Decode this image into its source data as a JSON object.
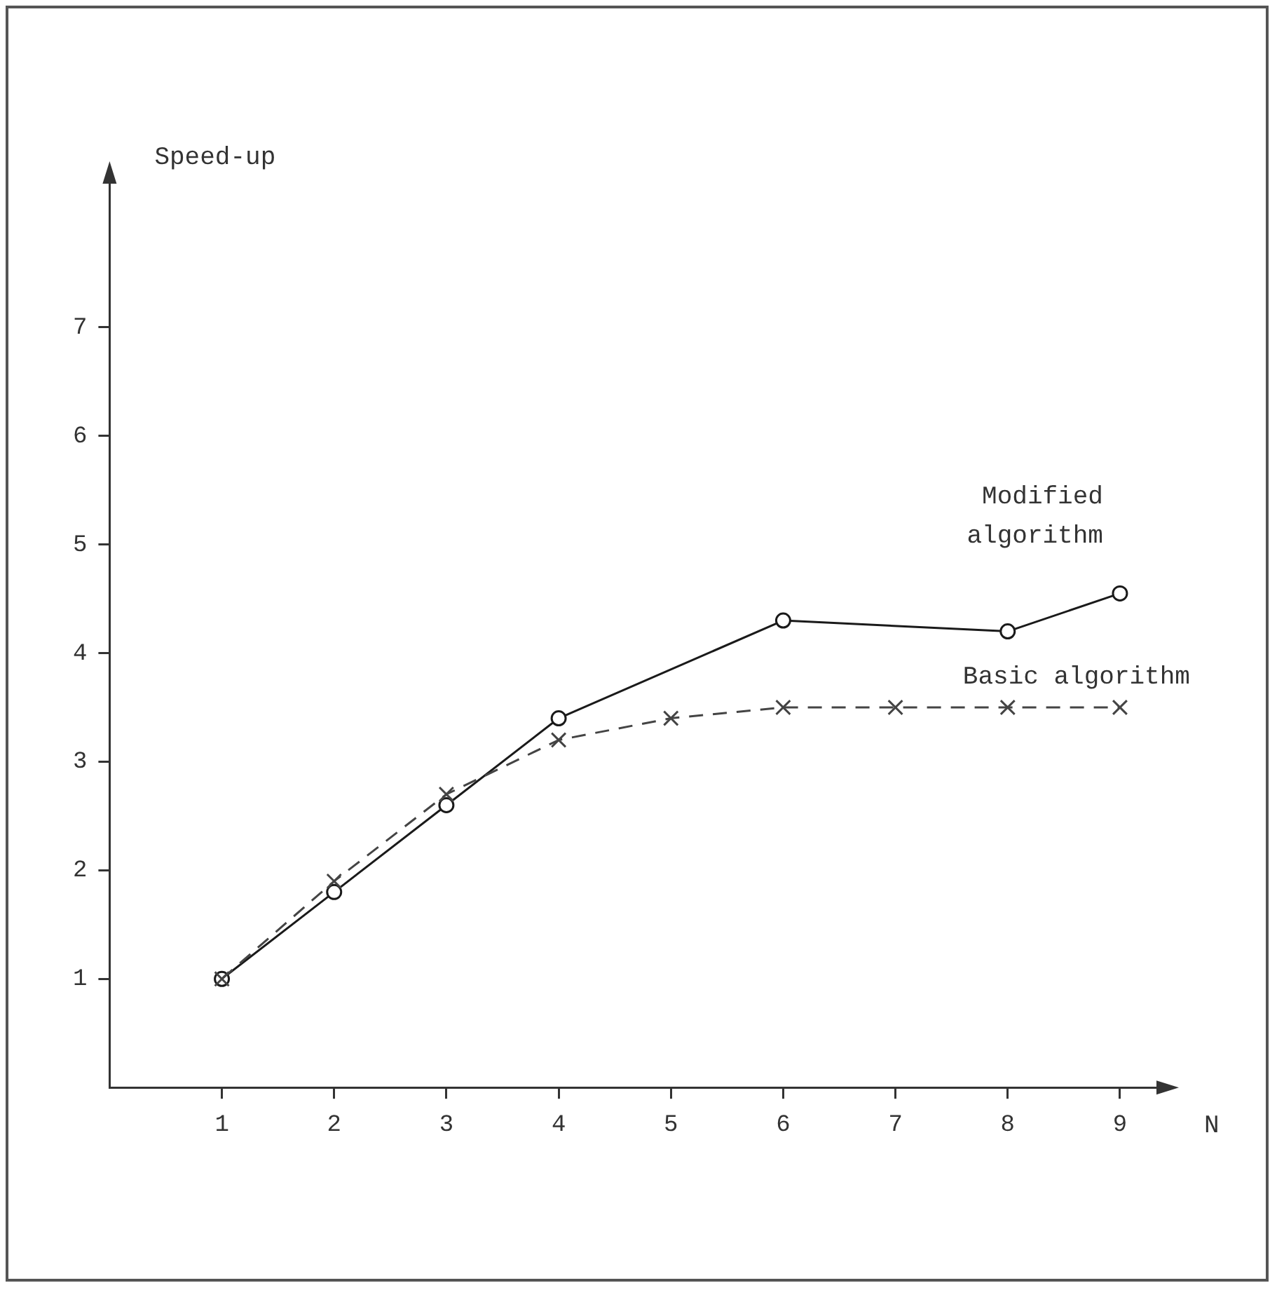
{
  "chart_data": {
    "type": "line",
    "xlabel": "N",
    "ylabel": "Speed-up",
    "x": [
      1,
      2,
      3,
      4,
      5,
      6,
      7,
      8,
      9
    ],
    "series": [
      {
        "name": "Modified algorithm",
        "color": "#1a1a1a",
        "marker": "circle",
        "line_style": "solid",
        "values": [
          1.0,
          1.8,
          2.6,
          3.4,
          null,
          4.3,
          null,
          4.2,
          4.55
        ]
      },
      {
        "name": "Basic algorithm",
        "color": "#444444",
        "marker": "cross",
        "line_style": "dashed",
        "values": [
          1.0,
          1.9,
          2.7,
          3.2,
          3.4,
          3.5,
          3.5,
          3.5,
          3.5
        ]
      }
    ],
    "xlim": [
      0,
      9.4
    ],
    "ylim": [
      0,
      8.4
    ],
    "xticks": [
      1,
      2,
      3,
      4,
      5,
      6,
      7,
      8,
      9
    ],
    "yticks": [
      1,
      2,
      3,
      4,
      5,
      6,
      7
    ],
    "grid": false,
    "legend": false
  }
}
